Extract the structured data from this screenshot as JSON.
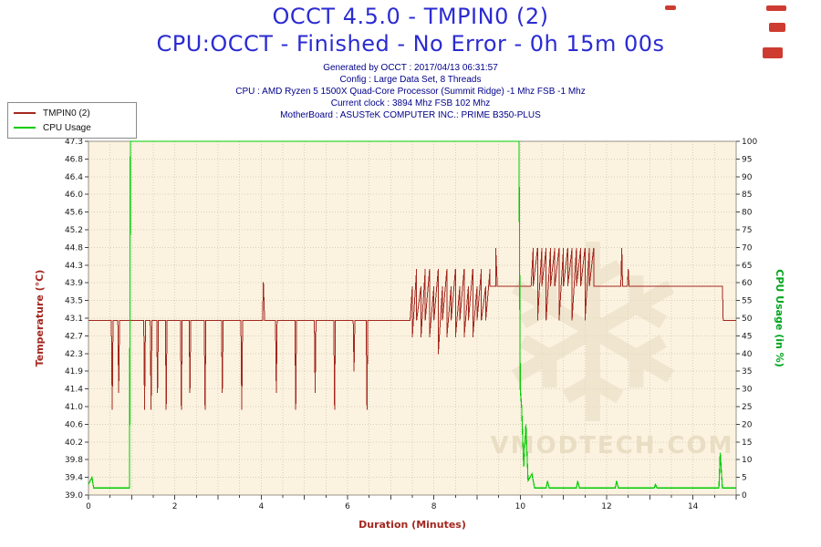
{
  "header": {
    "title_line1": "OCCT 4.5.0 - TMPIN0 (2)",
    "title_line2": "CPU:OCCT - Finished - No Error - 0h 15m 00s"
  },
  "meta_lines": [
    "Generated by OCCT : 2017/04/13 06:31:57",
    "Config : Large Data Set, 8 Threads",
    "CPU : AMD Ryzen 5 1500X Quad-Core Processor (Summit Ridge) -1 Mhz FSB -1 Mhz",
    "Current clock : 3894 Mhz FSB 102 Mhz",
    "MotherBoard : ASUSTeK COMPUTER INC.: PRIME B350-PLUS"
  ],
  "watermark": {
    "text": "VMODTECH.COM",
    "icon": "snowflake"
  },
  "colors": {
    "title": "#2b2bd2",
    "meta": "#00008b",
    "plot_bg": "#fbf3e0",
    "grid": "#d9cfba",
    "plot_border": "#9a9388",
    "tick_text": "#1a1a1a",
    "watermark": "#e9ddc4",
    "legend_border": "#8a8a8a",
    "red_mark": "#c9261b"
  },
  "chart_data": {
    "type": "line",
    "title": "OCCT 4.5.0 - TMPIN0 (2)",
    "subtitle": "CPU:OCCT - Finished - No Error - 0h 15m 00s",
    "legend_position": "top-left",
    "grid": true,
    "x_axis": {
      "label": "Duration (Minutes)",
      "min": 0,
      "max": 15,
      "tick_values": [
        0,
        2,
        4,
        6,
        8,
        10,
        12,
        14
      ],
      "tick_labels": [
        "0",
        "2",
        "4",
        "6",
        "8",
        "10",
        "12",
        "14"
      ],
      "minor_tick_step": 0.5,
      "grid_step": 0.5
    },
    "y_left": {
      "label": "Temperature (°C)",
      "min": 39.0,
      "max": 47.3,
      "tick_labels": [
        "47.3",
        "46.8",
        "46.4",
        "46.0",
        "45.6",
        "45.2",
        "44.8",
        "44.3",
        "43.9",
        "43.5",
        "43.1",
        "42.7",
        "42.3",
        "41.9",
        "41.4",
        "41.0",
        "40.6",
        "40.2",
        "39.8",
        "39.4",
        "39.0"
      ],
      "color": "#a4271f"
    },
    "y_right": {
      "label": "CPU Usage (in %)",
      "min": 0,
      "max": 100,
      "tick_step": 5,
      "color": "#00a51e"
    },
    "series": [
      {
        "name": "TMPIN0 (2)",
        "axis": "left",
        "color": "#a4271f",
        "width": 1,
        "points": [
          [
            0,
            43.1
          ],
          [
            0.53,
            43.1
          ],
          [
            0.55,
            41
          ],
          [
            0.57,
            43.1
          ],
          [
            0.68,
            43.1
          ],
          [
            0.7,
            41.4
          ],
          [
            0.72,
            43.1
          ],
          [
            1.28,
            43.1
          ],
          [
            1.3,
            41
          ],
          [
            1.32,
            43.1
          ],
          [
            1.43,
            43.1
          ],
          [
            1.45,
            41
          ],
          [
            1.47,
            43.1
          ],
          [
            1.58,
            43.1
          ],
          [
            1.6,
            41.4
          ],
          [
            1.62,
            43.1
          ],
          [
            1.78,
            43.1
          ],
          [
            1.8,
            41
          ],
          [
            1.82,
            43.1
          ],
          [
            2.13,
            43.1
          ],
          [
            2.15,
            41
          ],
          [
            2.17,
            43.1
          ],
          [
            2.33,
            43.1
          ],
          [
            2.35,
            41.4
          ],
          [
            2.37,
            43.1
          ],
          [
            2.68,
            43.1
          ],
          [
            2.7,
            41
          ],
          [
            2.72,
            43.1
          ],
          [
            3.08,
            43.1
          ],
          [
            3.1,
            41.4
          ],
          [
            3.12,
            43.1
          ],
          [
            3.53,
            43.1
          ],
          [
            3.55,
            41
          ],
          [
            3.57,
            43.1
          ],
          [
            4.03,
            43.1
          ],
          [
            4.05,
            44
          ],
          [
            4.08,
            43.1
          ],
          [
            4.33,
            43.1
          ],
          [
            4.35,
            41.4
          ],
          [
            4.37,
            43.1
          ],
          [
            4.78,
            43.1
          ],
          [
            4.8,
            41
          ],
          [
            4.82,
            43.1
          ],
          [
            5.23,
            43.1
          ],
          [
            5.25,
            41.4
          ],
          [
            5.27,
            43.1
          ],
          [
            5.68,
            43.1
          ],
          [
            5.7,
            41
          ],
          [
            5.72,
            43.1
          ],
          [
            6.13,
            43.1
          ],
          [
            6.15,
            41.9
          ],
          [
            6.17,
            43.1
          ],
          [
            6.43,
            43.1
          ],
          [
            6.45,
            41
          ],
          [
            6.47,
            43.1
          ],
          [
            7.45,
            43.1
          ],
          [
            7.5,
            43.9
          ],
          [
            7.5,
            42.7
          ],
          [
            7.6,
            44.3
          ],
          [
            7.6,
            43.1
          ],
          [
            7.7,
            43.9
          ],
          [
            7.7,
            42.7
          ],
          [
            7.8,
            44.3
          ],
          [
            7.8,
            43.1
          ],
          [
            7.9,
            44.3
          ],
          [
            7.9,
            42.7
          ],
          [
            8,
            43.9
          ],
          [
            8,
            43.1
          ],
          [
            8.1,
            44.3
          ],
          [
            8.1,
            42.3
          ],
          [
            8.2,
            43.9
          ],
          [
            8.2,
            43.1
          ],
          [
            8.3,
            44.3
          ],
          [
            8.3,
            42.7
          ],
          [
            8.4,
            43.9
          ],
          [
            8.4,
            43.1
          ],
          [
            8.5,
            44.3
          ],
          [
            8.5,
            42.7
          ],
          [
            8.6,
            43.9
          ],
          [
            8.6,
            43.1
          ],
          [
            8.7,
            44.3
          ],
          [
            8.7,
            42.7
          ],
          [
            8.8,
            43.9
          ],
          [
            8.8,
            43.1
          ],
          [
            8.9,
            44.3
          ],
          [
            8.9,
            42.7
          ],
          [
            9,
            43.9
          ],
          [
            9,
            43.1
          ],
          [
            9.1,
            44.3
          ],
          [
            9.1,
            43.1
          ],
          [
            9.2,
            43.9
          ],
          [
            9.2,
            43.1
          ],
          [
            9.3,
            44.3
          ],
          [
            9.3,
            43.9
          ],
          [
            9.43,
            43.9
          ],
          [
            9.43,
            44.8
          ],
          [
            9.47,
            43.9
          ],
          [
            10.25,
            43.9
          ],
          [
            10.3,
            44.8
          ],
          [
            10.3,
            43.9
          ],
          [
            10.4,
            44.8
          ],
          [
            10.4,
            43.1
          ],
          [
            10.5,
            44.8
          ],
          [
            10.5,
            43.9
          ],
          [
            10.6,
            44.8
          ],
          [
            10.6,
            43.1
          ],
          [
            10.7,
            44.8
          ],
          [
            10.7,
            43.9
          ],
          [
            10.8,
            44.8
          ],
          [
            10.8,
            43.9
          ],
          [
            10.9,
            44.8
          ],
          [
            10.9,
            43.1
          ],
          [
            11,
            44.8
          ],
          [
            11,
            43.9
          ],
          [
            11.1,
            44.8
          ],
          [
            11.1,
            43.9
          ],
          [
            11.2,
            44.8
          ],
          [
            11.2,
            43.1
          ],
          [
            11.3,
            44.8
          ],
          [
            11.3,
            43.9
          ],
          [
            11.4,
            44.8
          ],
          [
            11.4,
            43.9
          ],
          [
            11.5,
            44.8
          ],
          [
            11.5,
            43.1
          ],
          [
            11.6,
            44.8
          ],
          [
            11.6,
            43.9
          ],
          [
            11.7,
            44.8
          ],
          [
            11.7,
            43.9
          ],
          [
            12.33,
            43.9
          ],
          [
            12.35,
            44.8
          ],
          [
            12.37,
            43.9
          ],
          [
            12.48,
            43.9
          ],
          [
            12.5,
            44.3
          ],
          [
            12.52,
            43.9
          ],
          [
            14.68,
            43.9
          ],
          [
            14.7,
            43.1
          ],
          [
            15,
            43.1
          ]
        ]
      },
      {
        "name": "CPU Usage",
        "axis": "right",
        "color": "#00cc00",
        "width": 1.2,
        "points": [
          [
            0,
            3
          ],
          [
            0.08,
            5
          ],
          [
            0.12,
            2
          ],
          [
            0.95,
            2
          ],
          [
            0.97,
            100
          ],
          [
            9.97,
            100
          ],
          [
            10,
            30
          ],
          [
            10.03,
            25
          ],
          [
            10.08,
            8
          ],
          [
            10.13,
            20
          ],
          [
            10.18,
            4
          ],
          [
            10.27,
            6
          ],
          [
            10.33,
            2
          ],
          [
            10.6,
            2
          ],
          [
            10.63,
            4
          ],
          [
            10.67,
            2
          ],
          [
            11.3,
            2
          ],
          [
            11.33,
            4
          ],
          [
            11.37,
            2
          ],
          [
            12.2,
            2
          ],
          [
            12.23,
            4
          ],
          [
            12.27,
            2
          ],
          [
            13.1,
            2
          ],
          [
            13.13,
            3
          ],
          [
            13.17,
            2
          ],
          [
            14.6,
            2
          ],
          [
            14.63,
            12
          ],
          [
            14.68,
            2
          ],
          [
            15,
            2
          ]
        ]
      }
    ]
  }
}
